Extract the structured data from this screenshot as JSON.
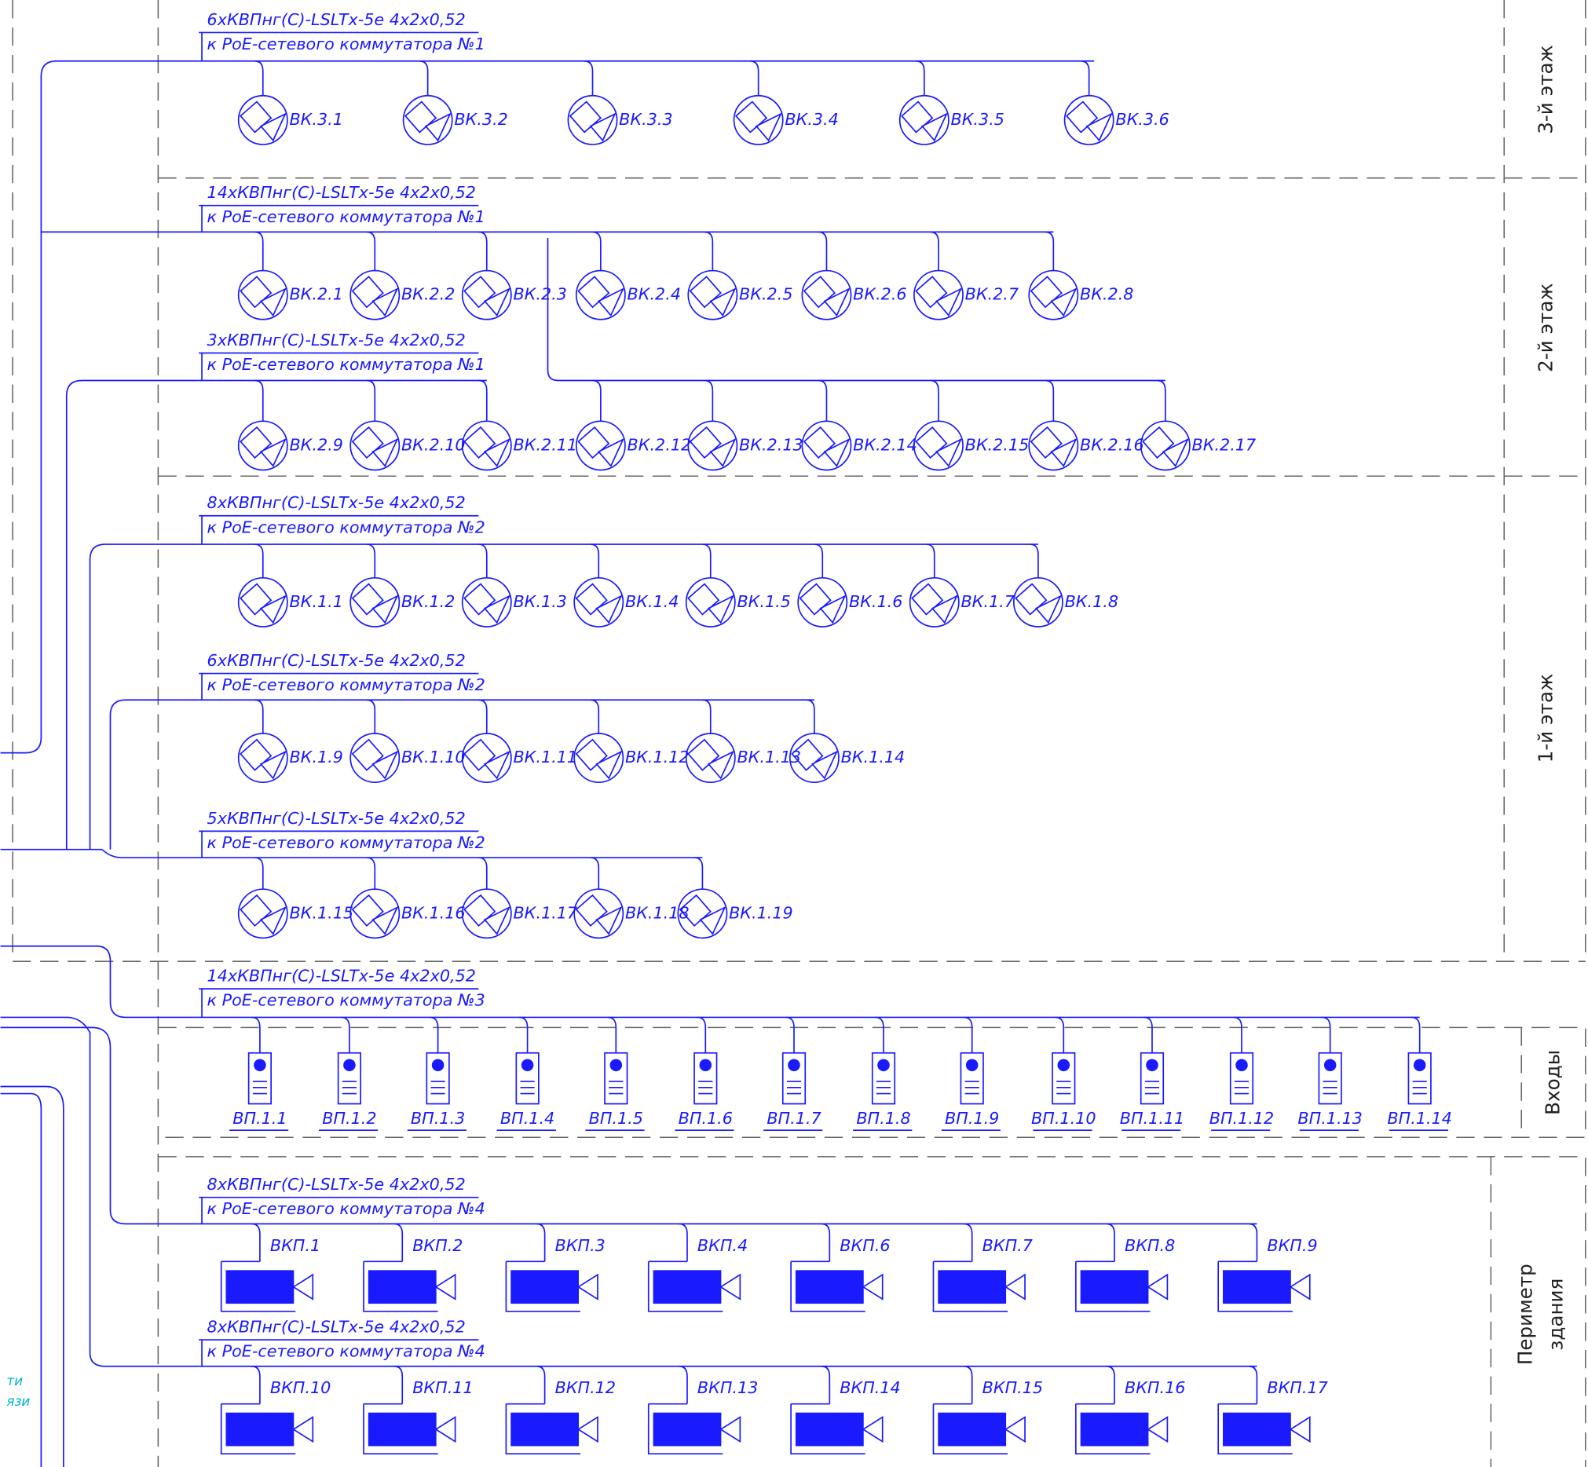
{
  "floors": [
    {
      "lines": [
        "3-й этаж"
      ]
    },
    {
      "lines": [
        "2-й этаж"
      ]
    },
    {
      "lines": [
        "1-й этаж"
      ]
    },
    {
      "lines": [
        "Входы"
      ]
    },
    {
      "lines": [
        "Периметр",
        "здания"
      ]
    }
  ],
  "groups": [
    {
      "cable": "6хКВПнг(С)-LSLTx-5e 4х2х0,52",
      "target": "к PoE-сетевого коммутатора №1",
      "devices": [
        "ВК.3.1",
        "ВК.3.2",
        "ВК.3.3",
        "ВК.3.4",
        "ВК.3.5",
        "ВК.3.6"
      ]
    },
    {
      "cable": "14хКВПнг(С)-LSLTx-5e 4х2х0,52",
      "target": "к PoE-сетевого коммутатора №1",
      "devices": [
        "ВК.2.1",
        "ВК.2.2",
        "ВК.2.3",
        "ВК.2.4",
        "ВК.2.5",
        "ВК.2.6",
        "ВК.2.7",
        "ВК.2.8"
      ]
    },
    {
      "cable": "3хКВПнг(С)-LSLTx-5e 4х2х0,52",
      "target": "к PoE-сетевого коммутатора №1",
      "devices": [
        "ВК.2.9",
        "ВК.2.10",
        "ВК.2.11",
        "ВК.2.12",
        "ВК.2.13",
        "ВК.2.14",
        "ВК.2.15",
        "ВК.2.16",
        "ВК.2.17"
      ]
    },
    {
      "cable": "8хКВПнг(С)-LSLTx-5e 4х2х0,52",
      "target": "к PoE-сетевого коммутатора №2",
      "devices": [
        "ВК.1.1",
        "ВК.1.2",
        "ВК.1.3",
        "ВК.1.4",
        "ВК.1.5",
        "ВК.1.6",
        "ВК.1.7",
        "ВК.1.8"
      ]
    },
    {
      "cable": "6хКВПнг(С)-LSLTx-5e 4х2х0,52",
      "target": "к PoE-сетевого коммутатора №2",
      "devices": [
        "ВК.1.9",
        "ВК.1.10",
        "ВК.1.11",
        "ВК.1.12",
        "ВК.1.13",
        "ВК.1.14"
      ]
    },
    {
      "cable": "5хКВПнг(С)-LSLTx-5e 4х2х0,52",
      "target": "к PoE-сетевого коммутатора №2",
      "devices": [
        "ВК.1.15",
        "ВК.1.16",
        "ВК.1.17",
        "ВК.1.18",
        "ВК.1.19"
      ]
    },
    {
      "cable": "14хКВПнг(С)-LSLTx-5e 4х2х0,52",
      "target": "к PoE-сетевого коммутатора №3",
      "devices": [
        "ВП.1.1",
        "ВП.1.2",
        "ВП.1.3",
        "ВП.1.4",
        "ВП.1.5",
        "ВП.1.6",
        "ВП.1.7",
        "ВП.1.8",
        "ВП.1.9",
        "ВП.1.10",
        "ВП.1.11",
        "ВП.1.12",
        "ВП.1.13",
        "ВП.1.14"
      ]
    },
    {
      "cable": "8хКВПнг(С)-LSLTx-5e 4х2х0,52",
      "target": "к PoE-сетевого коммутатора №4",
      "devices": [
        "ВКП.1",
        "ВКП.2",
        "ВКП.3",
        "ВКП.4",
        "ВКП.6",
        "ВКП.7",
        "ВКП.8",
        "ВКП.9"
      ]
    },
    {
      "cable": "8хКВПнг(С)-LSLTx-5e 4х2х0,52",
      "target": "к PoE-сетевого коммутатора №4",
      "devices": [
        "ВКП.10",
        "ВКП.11",
        "ВКП.12",
        "ВКП.13",
        "ВКП.14",
        "ВКП.15",
        "ВКП.16",
        "ВКП.17"
      ]
    }
  ],
  "side_note": [
    "ти",
    "язи"
  ]
}
